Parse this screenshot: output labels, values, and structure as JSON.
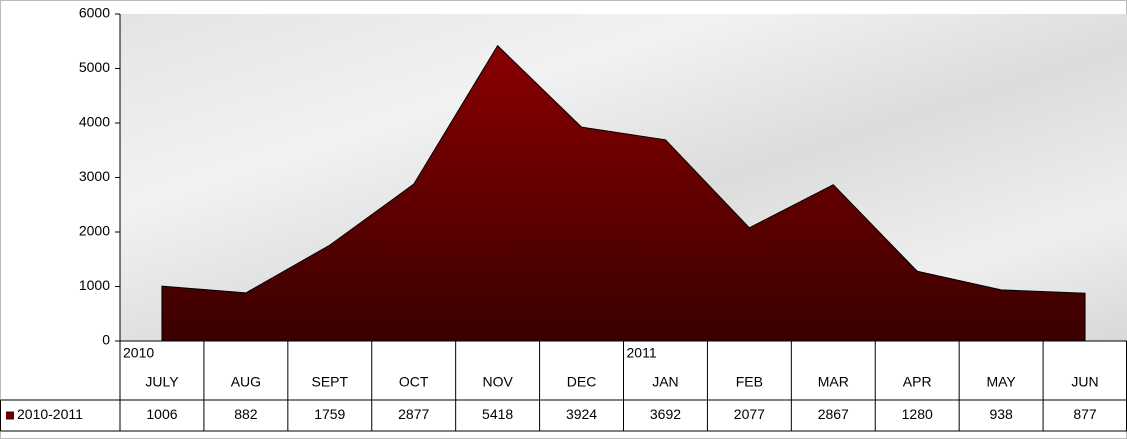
{
  "chart_data": {
    "type": "area",
    "categories": [
      "JULY",
      "AUG",
      "SEPT",
      "OCT",
      "NOV",
      "DEC",
      "JAN",
      "FEB",
      "MAR",
      "APR",
      "MAY",
      "JUN"
    ],
    "category_years": [
      "2010",
      null,
      null,
      null,
      null,
      null,
      "2011",
      null,
      null,
      null,
      null,
      null
    ],
    "series": [
      {
        "name": "2010-2011",
        "color": "#6b0000",
        "values": [
          1006,
          882,
          1759,
          2877,
          5418,
          3924,
          3692,
          2077,
          2867,
          1280,
          938,
          877
        ]
      }
    ],
    "ylim": [
      0,
      6000
    ],
    "yticks": [
      0,
      1000,
      2000,
      3000,
      4000,
      5000,
      6000
    ],
    "data_table": true
  }
}
